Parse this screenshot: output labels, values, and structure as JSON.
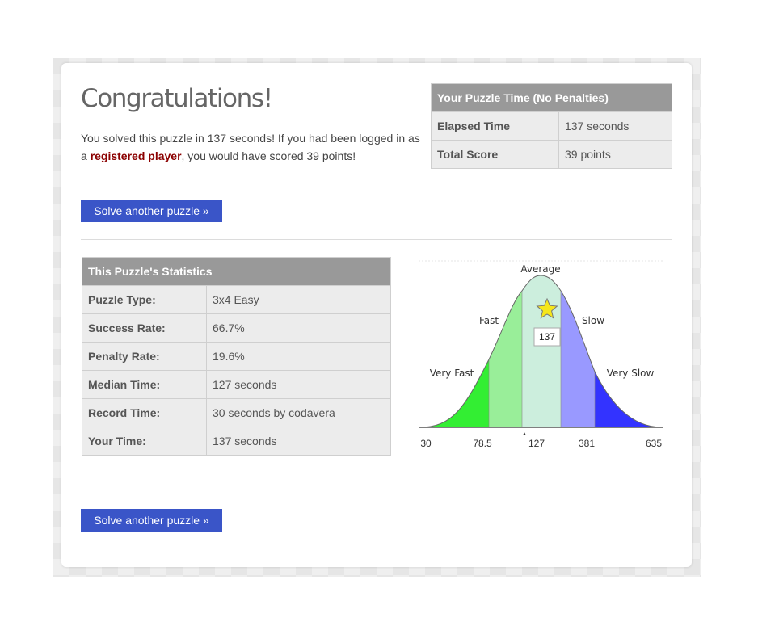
{
  "page": {
    "title": "Congratulations!",
    "intro": {
      "part1": "You solved this puzzle in 137 seconds! If you had been logged in as a ",
      "link": "registered player",
      "part2": ", you would have scored 39 points!"
    },
    "solve_button_label": "Solve another puzzle »"
  },
  "time_table": {
    "header": "Your Puzzle Time (No Penalties)",
    "rows": [
      {
        "label": "Elapsed Time",
        "value": "137 seconds"
      },
      {
        "label": "Total Score",
        "value": "39 points"
      }
    ]
  },
  "stats_table": {
    "header": "This Puzzle's Statistics",
    "rows": [
      {
        "label": "Puzzle Type:",
        "value": "3x4 Easy"
      },
      {
        "label": "Success Rate:",
        "value": "66.7%"
      },
      {
        "label": "Penalty Rate:",
        "value": "19.6%"
      },
      {
        "label": "Median Time:",
        "value": "127 seconds"
      },
      {
        "label": "Record Time:",
        "value": "30 seconds by codavera"
      },
      {
        "label": "Your Time:",
        "value": "137 seconds"
      }
    ]
  },
  "chart_data": {
    "type": "area",
    "x_ticks": [
      "30",
      "78.5",
      "127",
      "381",
      "635"
    ],
    "segments": [
      {
        "name": "Very Fast",
        "color": "#33ee33"
      },
      {
        "name": "Fast",
        "color": "#99ee99"
      },
      {
        "name": "Average",
        "color": "#cceedd"
      },
      {
        "name": "Slow",
        "color": "#9999ff"
      },
      {
        "name": "Very Slow",
        "color": "#3333ff"
      }
    ],
    "marker": {
      "label": "137",
      "icon": "star-icon",
      "color": "#f5e61b"
    }
  }
}
